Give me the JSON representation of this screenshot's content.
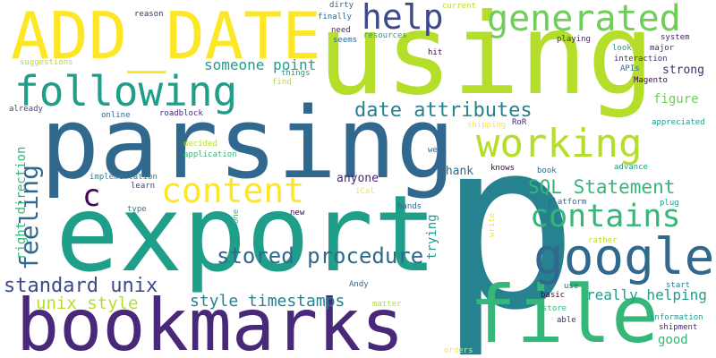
{
  "background": "#ffffff",
  "palette": {
    "purple": "#440154",
    "indigo": "#482878",
    "blue": "#3e4989",
    "slate": "#31688e",
    "teal": "#26828e",
    "green_teal": "#1f9e89",
    "green": "#35b779",
    "light_green": "#6ece58",
    "lime": "#b5de2b",
    "yellow": "#fde725"
  },
  "words": [
    {
      "text": "p",
      "color": "teal"
    },
    {
      "text": "using",
      "color": "lime"
    },
    {
      "text": "export",
      "color": "green_teal"
    },
    {
      "text": "parsing",
      "color": "slate"
    },
    {
      "text": "bookmarks",
      "color": "indigo"
    },
    {
      "text": "file",
      "color": "green"
    },
    {
      "text": "ADD_DATE",
      "color": "yellow"
    },
    {
      "text": "following",
      "color": "green_teal"
    },
    {
      "text": "working",
      "color": "lime"
    },
    {
      "text": "generated",
      "color": "light_green"
    },
    {
      "text": "google",
      "color": "slate"
    },
    {
      "text": "help",
      "color": "blue"
    },
    {
      "text": "content",
      "color": "yellow"
    },
    {
      "text": "contains",
      "color": "green"
    },
    {
      "text": "feeling",
      "color": "slate"
    },
    {
      "text": "c",
      "color": "purple"
    },
    {
      "text": "date attributes",
      "color": "teal"
    },
    {
      "text": "stored procedure",
      "color": "slate"
    },
    {
      "text": "standard unix",
      "color": "blue"
    },
    {
      "text": "SQL Statement",
      "color": "green"
    },
    {
      "text": "really helping",
      "color": "green_teal"
    },
    {
      "text": "unix style",
      "color": "lime"
    },
    {
      "text": "style timestamps",
      "color": "teal"
    },
    {
      "text": "someone point",
      "color": "green_teal"
    },
    {
      "text": "right direction",
      "color": "green"
    },
    {
      "text": "strong",
      "color": "indigo"
    },
    {
      "text": "figure",
      "color": "light_green"
    },
    {
      "text": "anyone",
      "color": "indigo"
    },
    {
      "text": "Thank",
      "color": "slate"
    },
    {
      "text": "trying",
      "color": "green_teal"
    },
    {
      "text": "good",
      "color": "green"
    },
    {
      "text": "current",
      "color": "lime"
    },
    {
      "text": "write",
      "color": "yellow"
    },
    {
      "text": "implementation",
      "color": "teal"
    },
    {
      "text": "learn",
      "color": "blue"
    },
    {
      "text": "decided",
      "color": "lime"
    },
    {
      "text": "application",
      "color": "green"
    },
    {
      "text": "online",
      "color": "slate"
    },
    {
      "text": "roadblock",
      "color": "indigo"
    },
    {
      "text": "already",
      "color": "blue"
    },
    {
      "text": "suggestions",
      "color": "lime"
    },
    {
      "text": "reason",
      "color": "indigo"
    },
    {
      "text": "dirty",
      "color": "slate"
    },
    {
      "text": "finally",
      "color": "slate"
    },
    {
      "text": "need",
      "color": "indigo"
    },
    {
      "text": "seems",
      "color": "slate"
    },
    {
      "text": "resources",
      "color": "green_teal"
    },
    {
      "text": "things",
      "color": "green_teal"
    },
    {
      "text": "find",
      "color": "lime"
    },
    {
      "text": "hit",
      "color": "purple"
    },
    {
      "text": "playing",
      "color": "indigo"
    },
    {
      "text": "system",
      "color": "indigo"
    },
    {
      "text": "look",
      "color": "green_teal"
    },
    {
      "text": "major",
      "color": "indigo"
    },
    {
      "text": "interaction",
      "color": "indigo"
    },
    {
      "text": "APIs",
      "color": "slate"
    },
    {
      "text": "Magento",
      "color": "purple"
    },
    {
      "text": "appreciated",
      "color": "green_teal"
    },
    {
      "text": "RoR",
      "color": "indigo"
    },
    {
      "text": "shipping",
      "color": "yellow"
    },
    {
      "text": "well",
      "color": "slate"
    },
    {
      "text": "knows",
      "color": "purple"
    },
    {
      "text": "book",
      "color": "slate"
    },
    {
      "text": "advance",
      "color": "green_teal"
    },
    {
      "text": "iCal",
      "color": "yellow"
    },
    {
      "text": "platform",
      "color": "slate"
    },
    {
      "text": "plug",
      "color": "green_teal"
    },
    {
      "text": "type",
      "color": "teal"
    },
    {
      "text": "new",
      "color": "purple"
    },
    {
      "text": "one",
      "color": "green"
    },
    {
      "text": "hands",
      "color": "slate"
    },
    {
      "text": "rather",
      "color": "lime"
    },
    {
      "text": "Andy",
      "color": "slate"
    },
    {
      "text": "use",
      "color": "slate"
    },
    {
      "text": "start",
      "color": "teal"
    },
    {
      "text": "basic",
      "color": "purple"
    },
    {
      "text": "etc",
      "color": "teal"
    },
    {
      "text": "matter",
      "color": "lime"
    },
    {
      "text": "store",
      "color": "green"
    },
    {
      "text": "able",
      "color": "indigo"
    },
    {
      "text": "information",
      "color": "green_teal"
    },
    {
      "text": "shipment",
      "color": "indigo"
    },
    {
      "text": "orders",
      "color": "yellow"
    }
  ]
}
